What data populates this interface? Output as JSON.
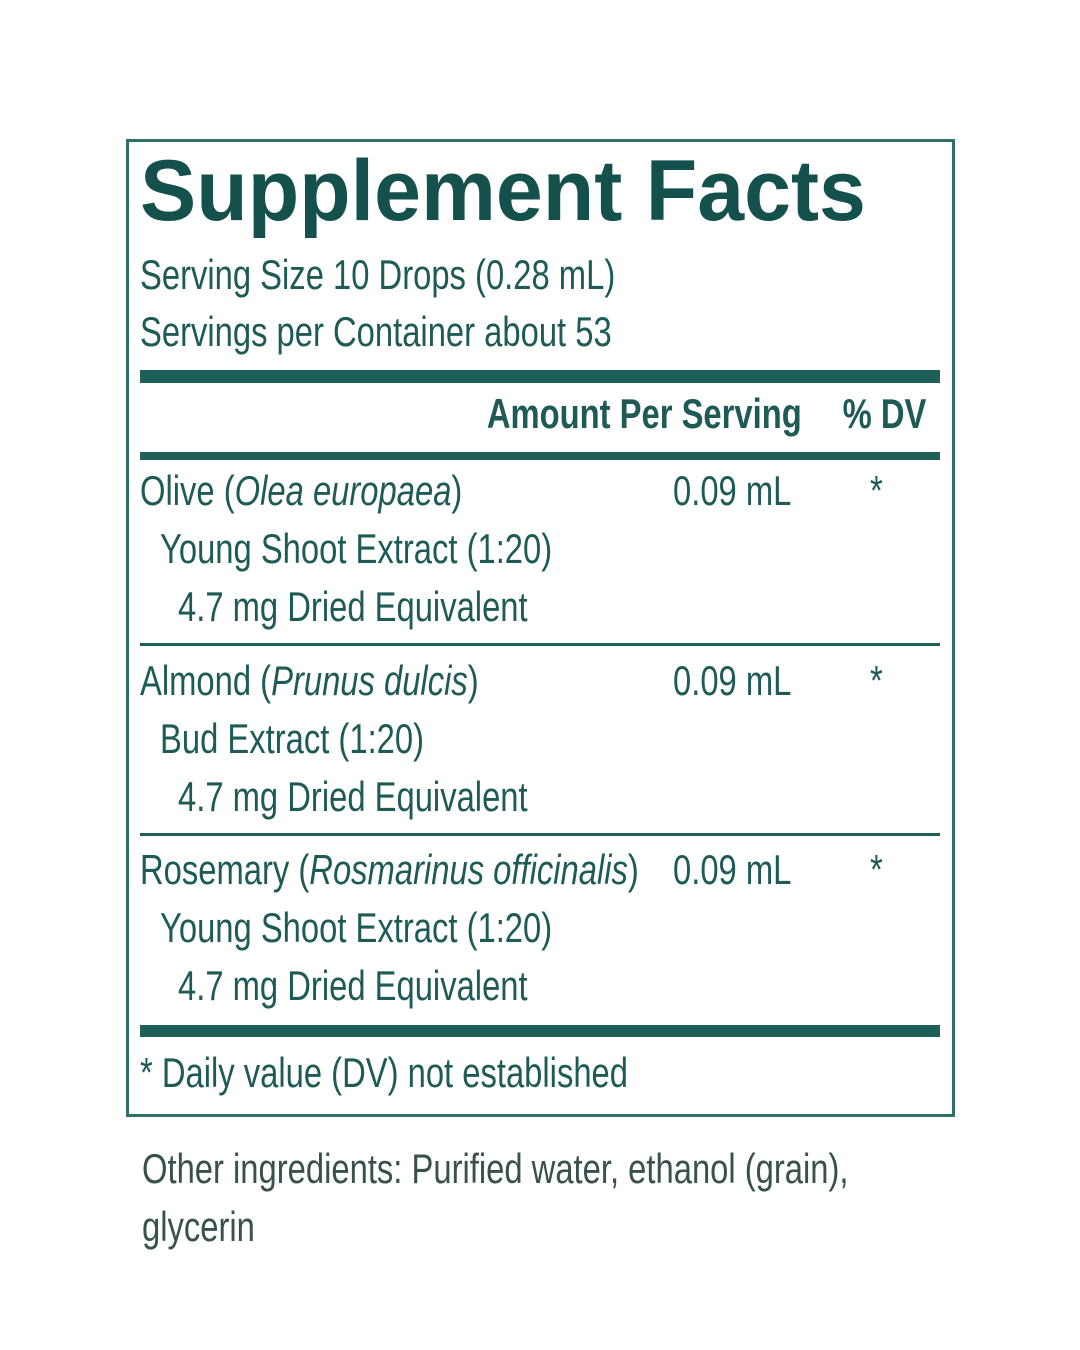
{
  "title": "Supplement Facts",
  "serving_size": "Serving Size 10 Drops (0.28 mL)",
  "servings_per_container": "Servings per Container about 53",
  "header": {
    "amount": "Amount Per Serving",
    "dv": "% DV"
  },
  "rows": [
    {
      "name": "Olive (",
      "latin": "Olea europaea",
      "suffix": ")",
      "extract": "Young Shoot Extract (1:20)",
      "equivalent": "4.7 mg Dried Equivalent",
      "amount": "0.09 mL",
      "dv": "*"
    },
    {
      "name": "Almond (",
      "latin": "Prunus dulcis",
      "suffix": ")",
      "extract": "Bud Extract (1:20)",
      "equivalent": "4.7 mg Dried Equivalent",
      "amount": "0.09 mL",
      "dv": "*"
    },
    {
      "name": "Rosemary (",
      "latin": "Rosmarinus officinalis",
      "suffix": ")",
      "extract": "Young Shoot Extract (1:20)",
      "equivalent": "4.7 mg Dried Equivalent",
      "amount": "0.09 mL",
      "dv": "*"
    }
  ],
  "footnote": "* Daily value (DV) not established",
  "other_ingredients": "Other ingredients: Purified water, ethanol (grain), glycerin"
}
